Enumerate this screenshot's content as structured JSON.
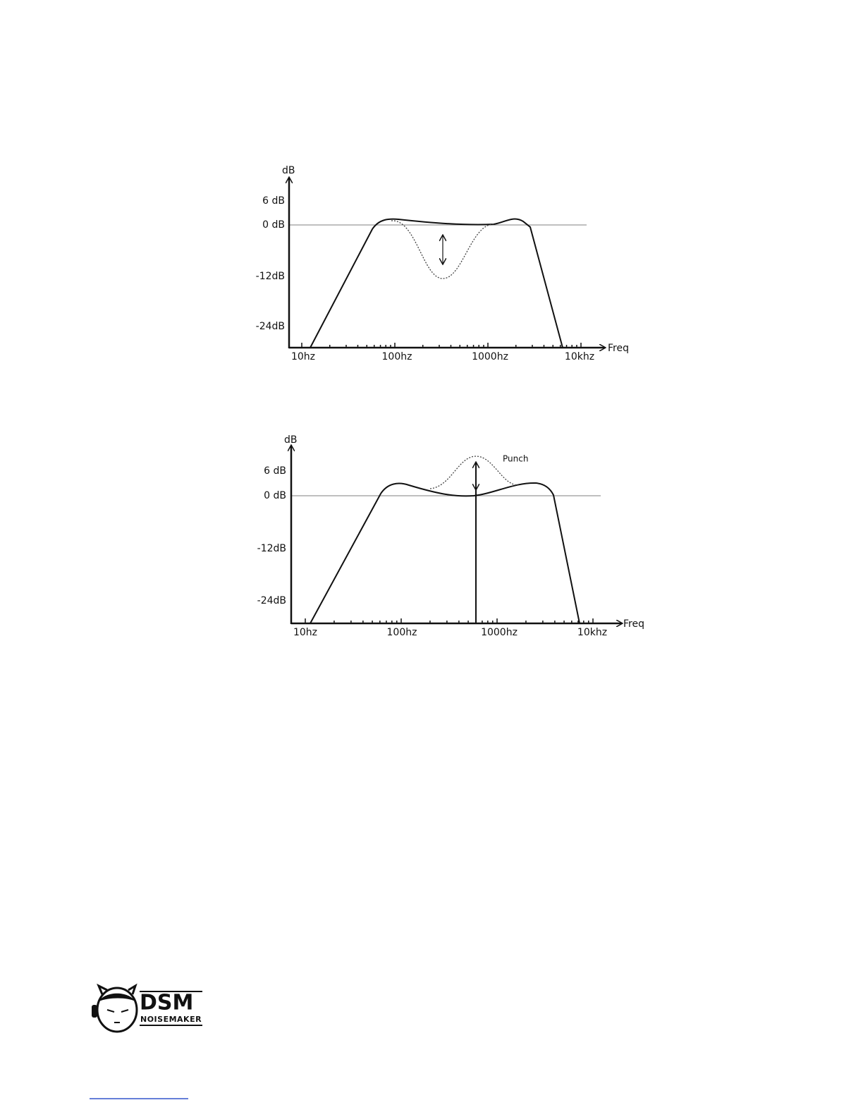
{
  "figures": [
    {
      "y_axis_label": "dB",
      "y_ticks": [
        "6 dB",
        "0 dB",
        "-12dB",
        "-24dB"
      ],
      "x_ticks": [
        "10hz",
        "100hz",
        "1000hz",
        "10khz"
      ],
      "x_axis_label": "Freq"
    },
    {
      "y_axis_label": "dB",
      "y_ticks": [
        "6 dB",
        "0 dB",
        "-12dB",
        "-24dB"
      ],
      "x_ticks": [
        "10hz",
        "100hz",
        "1000hz",
        "10khz"
      ],
      "x_axis_label": "Freq",
      "annotation": "Punch"
    }
  ],
  "logo": {
    "title": "DSM",
    "subtitle": "Noisemaker"
  }
}
